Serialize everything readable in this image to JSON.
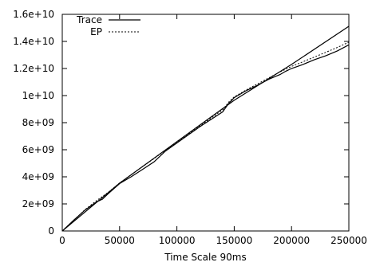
{
  "chart_data": {
    "type": "line",
    "title": "",
    "xlabel": "Time Scale 90ms",
    "ylabel": "",
    "xlim": [
      0,
      250000
    ],
    "ylim": [
      0,
      16000000000
    ],
    "x_ticks": [
      0,
      50000,
      100000,
      150000,
      200000,
      250000
    ],
    "x_tick_labels": [
      "0",
      "50000",
      "100000",
      "150000",
      "200000",
      "250000"
    ],
    "y_ticks": [
      0,
      2000000000,
      4000000000,
      6000000000,
      8000000000,
      10000000000,
      12000000000,
      14000000000,
      16000000000
    ],
    "y_tick_labels": [
      "0",
      "2e+09",
      "4e+09",
      "6e+09",
      "8e+09",
      "1e+10",
      "1.2e+10",
      "1.4e+10",
      "1.6e+10"
    ],
    "grid": false,
    "legend_position": "top-left",
    "series": [
      {
        "name": "Trace",
        "style": "solid",
        "x": [
          0,
          10000,
          20000,
          30000,
          35000,
          40000,
          50000,
          60000,
          70000,
          80000,
          90000,
          100000,
          110000,
          120000,
          130000,
          140000,
          145000,
          150000,
          160000,
          170000,
          180000,
          190000,
          195000,
          200000,
          210000,
          220000,
          230000,
          240000,
          250000
        ],
        "y": [
          0,
          800000000,
          1550000000,
          2150000000,
          2350000000,
          2750000000,
          3500000000,
          4000000000,
          4550000000,
          5100000000,
          5900000000,
          6500000000,
          7100000000,
          7700000000,
          8250000000,
          8800000000,
          9400000000,
          9850000000,
          10350000000,
          10750000000,
          11200000000,
          11550000000,
          11800000000,
          12000000000,
          12300000000,
          12650000000,
          12950000000,
          13300000000,
          13750000000
        ]
      },
      {
        "name": "EP",
        "style": "dashed",
        "x": [
          0,
          10000,
          20000,
          30000,
          40000,
          50000,
          60000,
          70000,
          80000,
          90000,
          100000,
          110000,
          120000,
          130000,
          140000,
          145000,
          150000,
          160000,
          170000,
          180000,
          190000,
          200000,
          210000,
          220000,
          230000,
          240000,
          250000
        ],
        "y": [
          0,
          800000000,
          1580000000,
          2250000000,
          2850000000,
          3550000000,
          4150000000,
          4750000000,
          5350000000,
          5950000000,
          6550000000,
          7150000000,
          7750000000,
          8350000000,
          8950000000,
          9500000000,
          9900000000,
          10400000000,
          10850000000,
          11300000000,
          11750000000,
          12150000000,
          12500000000,
          12850000000,
          13200000000,
          13550000000,
          13950000000
        ]
      },
      {
        "name": "",
        "style": "solid",
        "x": [
          0,
          50000,
          100000,
          150000,
          200000,
          250000
        ],
        "y": [
          0,
          3530000000,
          6600000000,
          9650000000,
          12300000000,
          15120000000
        ]
      }
    ]
  }
}
